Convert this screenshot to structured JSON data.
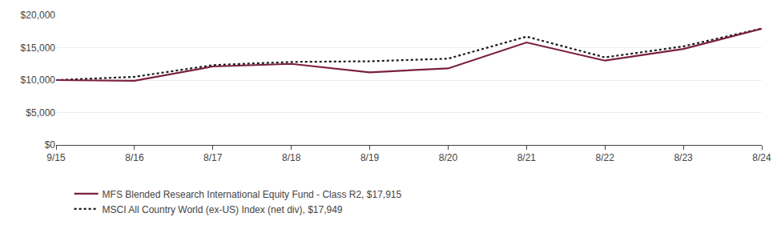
{
  "chart_data": {
    "type": "line",
    "categories": [
      "9/15",
      "8/16",
      "8/17",
      "8/18",
      "8/19",
      "8/20",
      "8/21",
      "8/22",
      "8/23",
      "8/24"
    ],
    "series": [
      {
        "name": "MSCI All Country World (ex-US) Index (net div), $17,949",
        "color": "#1a1a1a",
        "line_style": "dotted",
        "values": [
          10000,
          10500,
          12300,
          12800,
          12900,
          13300,
          16700,
          13500,
          15200,
          17949
        ]
      },
      {
        "name": "MFS Blended Research International Equity Fund - Class R2, $17,915",
        "color": "#7b2040",
        "line_style": "solid",
        "values": [
          10000,
          9900,
          12100,
          12500,
          11200,
          11800,
          15800,
          13000,
          14800,
          17915
        ]
      }
    ],
    "ylim": [
      0,
      20000
    ],
    "yticks": [
      {
        "value": 0,
        "label": "$0"
      },
      {
        "value": 5000,
        "label": "$5,000"
      },
      {
        "value": 10000,
        "label": "$10,000"
      },
      {
        "value": 15000,
        "label": "$15,000"
      },
      {
        "value": 20000,
        "label": "$20,000"
      }
    ],
    "grid": true,
    "legend": "below"
  }
}
